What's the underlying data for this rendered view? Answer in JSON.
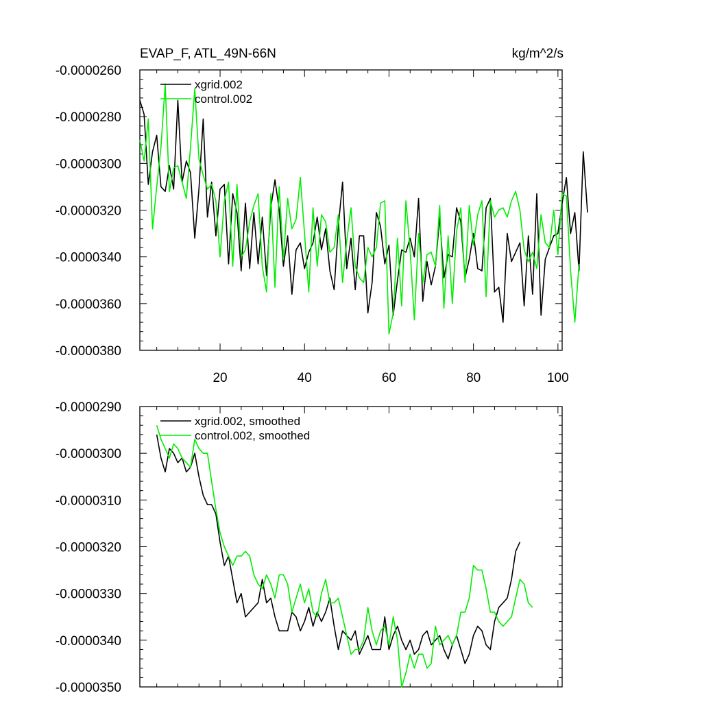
{
  "chart_data": [
    {
      "type": "line",
      "title": "EVAP_F, ATL_49N-66N",
      "units": "kg/m^2/s",
      "xlim": [
        1,
        101
      ],
      "ylim": [
        -3.8e-05,
        -2.6e-05
      ],
      "y_tick_labels": [
        "-0.0000260",
        "-0.0000280",
        "-0.0000300",
        "-0.0000320",
        "-0.0000340",
        "-0.0000360",
        "-0.0000380"
      ],
      "y_ticks": [
        -2.6e-05,
        -2.8e-05,
        -3e-05,
        -3.2e-05,
        -3.4e-05,
        -3.6e-05,
        -3.8e-05
      ],
      "x_tick_labels": [
        "20",
        "40",
        "60",
        "80",
        "100"
      ],
      "x_ticks": [
        20,
        40,
        60,
        80,
        100
      ],
      "legend_position": "top-left",
      "x_start": 1,
      "series": [
        {
          "name": "xgrid.002",
          "color": "#000000",
          "values": [
            -2.73e-05,
            -2.79e-05,
            -3.09e-05,
            -2.95e-05,
            -2.88e-05,
            -3.1e-05,
            -3.12e-05,
            -3.01e-05,
            -3.11e-05,
            -2.73e-05,
            -3.08e-05,
            -2.99e-05,
            -3.04e-05,
            -3.32e-05,
            -3.11e-05,
            -2.81e-05,
            -3.23e-05,
            -3.08e-05,
            -3.31e-05,
            -3.11e-05,
            -3.09e-05,
            -3.43e-05,
            -3.13e-05,
            -3.21e-05,
            -3.46e-05,
            -3.17e-05,
            -3.45e-05,
            -3.21e-05,
            -3.43e-05,
            -3.23e-05,
            -3.48e-05,
            -3.19e-05,
            -3.07e-05,
            -3.2e-05,
            -3.44e-05,
            -3.31e-05,
            -3.56e-05,
            -3.37e-05,
            -3.34e-05,
            -3.45e-05,
            -3.38e-05,
            -3.34e-05,
            -3.23e-05,
            -3.37e-05,
            -3.28e-05,
            -3.46e-05,
            -3.54e-05,
            -3.27e-05,
            -3.08e-05,
            -3.45e-05,
            -3.32e-05,
            -3.54e-05,
            -3.31e-05,
            -3.31e-05,
            -3.64e-05,
            -3.51e-05,
            -3.21e-05,
            -3.27e-05,
            -3.43e-05,
            -3.35e-05,
            -3.65e-05,
            -3.5e-05,
            -3.37e-05,
            -3.38e-05,
            -3.32e-05,
            -3.4e-05,
            -3.15e-05,
            -3.59e-05,
            -3.42e-05,
            -3.52e-05,
            -3.44e-05,
            -3.23e-05,
            -3.49e-05,
            -3.39e-05,
            -3.4e-05,
            -3.19e-05,
            -3.25e-05,
            -3.49e-05,
            -3.41e-05,
            -3.3e-05,
            -3.45e-05,
            -3.46e-05,
            -3.19e-05,
            -3.15e-05,
            -3.55e-05,
            -3.53e-05,
            -3.68e-05,
            -3.3e-05,
            -3.42e-05,
            -3.38e-05,
            -3.34e-05,
            -3.61e-05,
            -3.31e-05,
            -3.56e-05,
            -3.13e-05,
            -3.65e-05,
            -3.41e-05,
            -3.36e-05,
            -3.31e-05,
            -3.3e-05,
            -3.17e-05,
            -3.06e-05,
            -3.3e-05,
            -3.21e-05,
            -3.46e-05,
            -2.95e-05,
            -3.21e-05
          ]
        },
        {
          "name": "control.002",
          "color": "#00ee00",
          "values": [
            -2.9e-05,
            -2.99e-05,
            -2.81e-05,
            -3.28e-05,
            -3.1e-05,
            -2.93e-05,
            -2.66e-05,
            -3.12e-05,
            -3.02e-05,
            -3.01e-05,
            -3.08e-05,
            -3.15e-05,
            -2.93e-05,
            -2.68e-05,
            -2.98e-05,
            -3.05e-05,
            -3.11e-05,
            -3.09e-05,
            -3.16e-05,
            -3.4e-05,
            -3.16e-05,
            -3.08e-05,
            -3.44e-05,
            -3.09e-05,
            -3.4e-05,
            -3.37e-05,
            -3.25e-05,
            -3.18e-05,
            -3.13e-05,
            -3.44e-05,
            -3.55e-05,
            -3.13e-05,
            -3.53e-05,
            -3.1e-05,
            -3.41e-05,
            -3.15e-05,
            -3.28e-05,
            -3.24e-05,
            -3.06e-05,
            -3.3e-05,
            -3.55e-05,
            -3.19e-05,
            -3.44e-05,
            -3.22e-05,
            -3.25e-05,
            -3.38e-05,
            -3.36e-05,
            -3.22e-05,
            -3.51e-05,
            -3.33e-05,
            -3.19e-05,
            -3.44e-05,
            -3.49e-05,
            -3.51e-05,
            -3.36e-05,
            -3.4e-05,
            -3.36e-05,
            -3.17e-05,
            -3.16e-05,
            -3.73e-05,
            -3.64e-05,
            -3.32e-05,
            -3.61e-05,
            -3.16e-05,
            -3.37e-05,
            -3.67e-05,
            -3.3e-05,
            -3.51e-05,
            -3.39e-05,
            -3.38e-05,
            -3.44e-05,
            -3.18e-05,
            -3.62e-05,
            -3.31e-05,
            -3.6e-05,
            -3.29e-05,
            -3.19e-05,
            -3.51e-05,
            -3.18e-05,
            -3.35e-05,
            -3.22e-05,
            -3.16e-05,
            -3.57e-05,
            -3.16e-05,
            -3.23e-05,
            -3.2e-05,
            -3.19e-05,
            -3.23e-05,
            -3.16e-05,
            -3.12e-05,
            -3.2e-05,
            -3.37e-05,
            -3.42e-05,
            -3.38e-05,
            -3.45e-05,
            -3.22e-05,
            -3.34e-05,
            -3.36e-05,
            -3.2e-05,
            -3.39e-05,
            -3.13e-05,
            -3.14e-05,
            -3.46e-05,
            -3.68e-05,
            -3.43e-05
          ]
        }
      ]
    },
    {
      "type": "line",
      "title": "",
      "xlim": [
        1,
        101
      ],
      "ylim": [
        -3.5e-05,
        -2.9e-05
      ],
      "y_tick_labels": [
        "-0.0000290",
        "-0.0000300",
        "-0.0000310",
        "-0.0000320",
        "-0.0000330",
        "-0.0000340",
        "-0.0000350"
      ],
      "y_ticks": [
        -2.9e-05,
        -3e-05,
        -3.1e-05,
        -3.2e-05,
        -3.3e-05,
        -3.4e-05,
        -3.5e-05
      ],
      "x_ticks": [
        20,
        40,
        60,
        80,
        100
      ],
      "legend_position": "top-left",
      "x_start": 5,
      "series": [
        {
          "name": "xgrid.002, smoothed",
          "color": "#000000",
          "values": [
            -2.96e-05,
            -3.01e-05,
            -3.04e-05,
            -2.99e-05,
            -3e-05,
            -3.02e-05,
            -3.01e-05,
            -3.04e-05,
            -3.03e-05,
            -3e-05,
            -3.05e-05,
            -3.09e-05,
            -3.11e-05,
            -3.11e-05,
            -3.13e-05,
            -3.19e-05,
            -3.24e-05,
            -3.22e-05,
            -3.27e-05,
            -3.32e-05,
            -3.3e-05,
            -3.35e-05,
            -3.34e-05,
            -3.33e-05,
            -3.32e-05,
            -3.27e-05,
            -3.32e-05,
            -3.31e-05,
            -3.35e-05,
            -3.38e-05,
            -3.38e-05,
            -3.38e-05,
            -3.34e-05,
            -3.35e-05,
            -3.38e-05,
            -3.36e-05,
            -3.33e-05,
            -3.37e-05,
            -3.34e-05,
            -3.36e-05,
            -3.34e-05,
            -3.31e-05,
            -3.37e-05,
            -3.42e-05,
            -3.38e-05,
            -3.39e-05,
            -3.4e-05,
            -3.38e-05,
            -3.43e-05,
            -3.41e-05,
            -3.39e-05,
            -3.42e-05,
            -3.42e-05,
            -3.42e-05,
            -3.35e-05,
            -3.42e-05,
            -3.39e-05,
            -3.37e-05,
            -3.4e-05,
            -3.42e-05,
            -3.4e-05,
            -3.43e-05,
            -3.42e-05,
            -3.39e-05,
            -3.38e-05,
            -3.41e-05,
            -3.4e-05,
            -3.39e-05,
            -3.42e-05,
            -3.44e-05,
            -3.41e-05,
            -3.39e-05,
            -3.42e-05,
            -3.45e-05,
            -3.43e-05,
            -3.39e-05,
            -3.37e-05,
            -3.38e-05,
            -3.41e-05,
            -3.42e-05,
            -3.36e-05,
            -3.33e-05,
            -3.32e-05,
            -3.31e-05,
            -3.27e-05,
            -3.21e-05,
            -3.19e-05
          ]
        },
        {
          "name": "control.002, smoothed",
          "color": "#00ee00",
          "values": [
            -2.94e-05,
            -2.97e-05,
            -2.99e-05,
            -3.01e-05,
            -2.98e-05,
            -2.99e-05,
            -3.01e-05,
            -3.02e-05,
            -3.03e-05,
            -2.97e-05,
            -2.99e-05,
            -3e-05,
            -3e-05,
            -3.06e-05,
            -3.12e-05,
            -3.17e-05,
            -3.2e-05,
            -3.22e-05,
            -3.24e-05,
            -3.22e-05,
            -3.22e-05,
            -3.21e-05,
            -3.22e-05,
            -3.26e-05,
            -3.28e-05,
            -3.29e-05,
            -3.26e-05,
            -3.28e-05,
            -3.31e-05,
            -3.26e-05,
            -3.26e-05,
            -3.28e-05,
            -3.34e-05,
            -3.31e-05,
            -3.28e-05,
            -3.32e-05,
            -3.29e-05,
            -3.34e-05,
            -3.35e-05,
            -3.3e-05,
            -3.27e-05,
            -3.32e-05,
            -3.32e-05,
            -3.31e-05,
            -3.35e-05,
            -3.39e-05,
            -3.43e-05,
            -3.42e-05,
            -3.42e-05,
            -3.4e-05,
            -3.33e-05,
            -3.38e-05,
            -3.41e-05,
            -3.38e-05,
            -3.37e-05,
            -3.41e-05,
            -3.35e-05,
            -3.4e-05,
            -3.5e-05,
            -3.47e-05,
            -3.43e-05,
            -3.46e-05,
            -3.43e-05,
            -3.43e-05,
            -3.46e-05,
            -3.45e-05,
            -3.37e-05,
            -3.41e-05,
            -3.4e-05,
            -3.39e-05,
            -3.41e-05,
            -3.39e-05,
            -3.34e-05,
            -3.34e-05,
            -3.31e-05,
            -3.24e-05,
            -3.25e-05,
            -3.25e-05,
            -3.29e-05,
            -3.34e-05,
            -3.34e-05,
            -3.36e-05,
            -3.37e-05,
            -3.36e-05,
            -3.35e-05,
            -3.31e-05,
            -3.27e-05,
            -3.28e-05,
            -3.32e-05,
            -3.33e-05
          ]
        }
      ]
    }
  ]
}
